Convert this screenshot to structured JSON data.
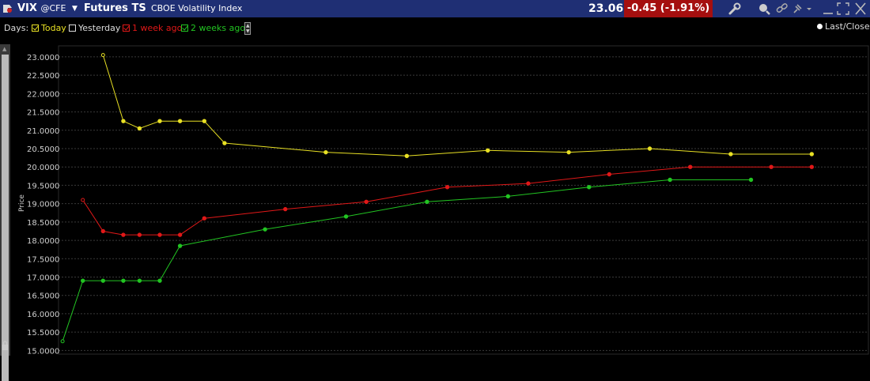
{
  "header": {
    "symbol": "VIX",
    "exchange": "@CFE",
    "title": "Futures TS",
    "subtitle": "CBOE Volatility Index",
    "last": "23.06",
    "change": "-0.45 (-1.91%)",
    "icons": [
      "logo-icon",
      "chevron-down-icon",
      "wrench-icon",
      "search-icon",
      "link-icon",
      "pin-icon",
      "chevron-down-icon",
      "minimize-icon",
      "maximize-icon",
      "close-icon"
    ]
  },
  "days_bar": {
    "label": "Days:",
    "options": [
      {
        "label": "Today",
        "checked": true,
        "color": "#e8e024"
      },
      {
        "label": "Yesterday",
        "checked": false,
        "color": "#dddddd"
      },
      {
        "label": "1 week ago",
        "checked": true,
        "color": "#e01818"
      },
      {
        "label": "2 weeks ago",
        "checked": true,
        "color": "#22c422"
      }
    ]
  },
  "legend": {
    "last_close": "Last/Close"
  },
  "chart_data": {
    "type": "line",
    "ylabel": "Price",
    "ylim": [
      14.9,
      23.3
    ],
    "xlim": [
      0,
      40
    ],
    "y_ticks": [
      "15.0000",
      "15.5000",
      "16.0000",
      "16.5000",
      "17.0000",
      "17.5000",
      "18.0000",
      "18.5000",
      "19.0000",
      "19.5000",
      "20.0000",
      "20.5000",
      "21.0000",
      "21.5000",
      "22.0000",
      "22.5000",
      "23.0000"
    ],
    "grid": true,
    "colors": {
      "background": "#000000",
      "grid": "#3a3a3a",
      "today": "#e8e024",
      "week1": "#e01818",
      "week2": "#22c422"
    },
    "series": [
      {
        "name": "Today",
        "color": "#e8e024",
        "x": [
          2.2,
          3.2,
          4,
          5,
          6,
          7.2,
          8.2,
          13.2,
          17.2,
          21.2,
          25.2,
          29.2,
          33.2,
          37.2
        ],
        "y": [
          23.05,
          21.25,
          21.05,
          21.25,
          21.25,
          21.25,
          20.65,
          20.4,
          20.3,
          20.45,
          20.4,
          20.5,
          20.35,
          20.35
        ]
      },
      {
        "name": "1 week ago",
        "color": "#e01818",
        "x": [
          1.2,
          2.2,
          3.2,
          4,
          5,
          6,
          7.2,
          11.2,
          15.2,
          19.2,
          23.2,
          27.2,
          31.2,
          35.2,
          37.2
        ],
        "y": [
          19.1,
          18.25,
          18.15,
          18.15,
          18.15,
          18.15,
          18.6,
          18.85,
          19.05,
          19.45,
          19.55,
          19.8,
          20.0,
          20.0,
          20.0
        ]
      },
      {
        "name": "2 weeks ago",
        "color": "#22c422",
        "x": [
          0.2,
          1.2,
          2.2,
          3.2,
          4,
          5,
          6,
          10.2,
          14.2,
          18.2,
          22.2,
          26.2,
          30.2,
          34.2
        ],
        "y": [
          15.25,
          16.9,
          16.9,
          16.9,
          16.9,
          16.9,
          17.85,
          18.3,
          18.65,
          19.05,
          19.2,
          19.45,
          19.65,
          19.65
        ]
      }
    ]
  }
}
